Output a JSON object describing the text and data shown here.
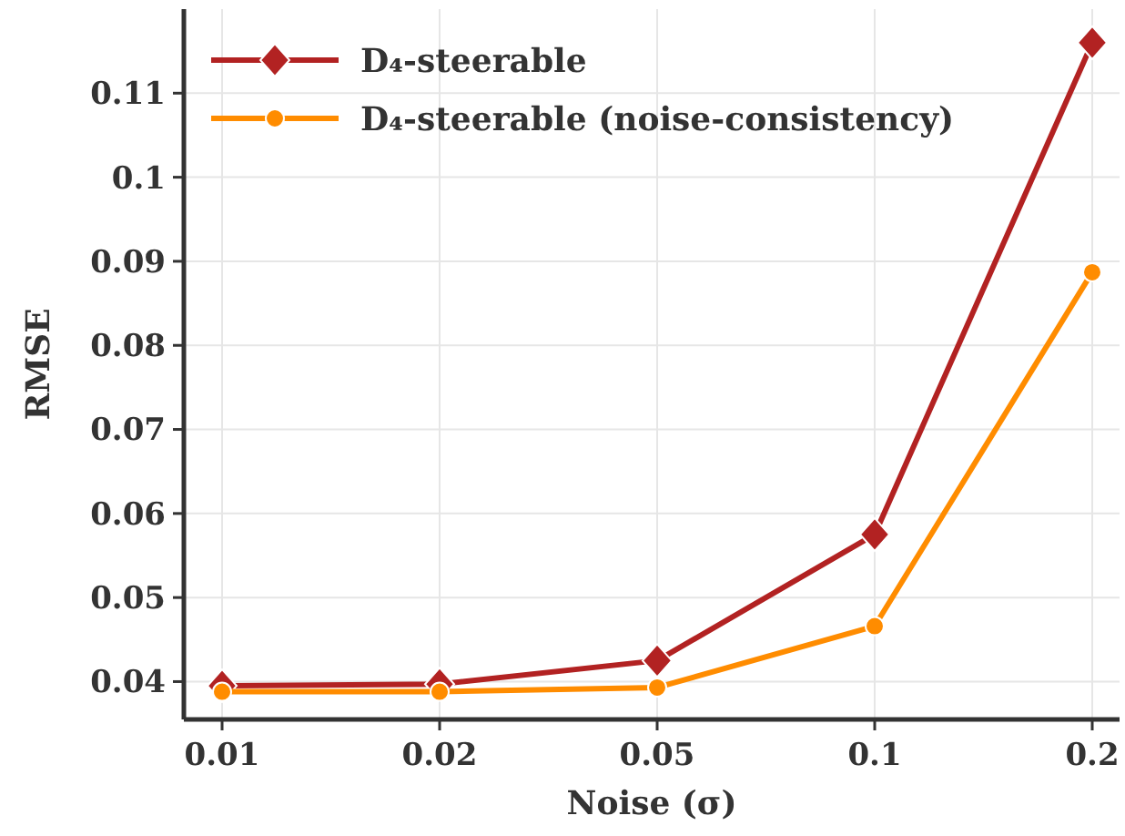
{
  "chart_data": {
    "type": "line",
    "xlabel": "Noise (σ)",
    "ylabel": "RMSE",
    "categories": [
      "0.01",
      "0.02",
      "0.05",
      "0.1",
      "0.2"
    ],
    "series": [
      {
        "name": "D₄-steerable",
        "color": "#b22222",
        "marker": "diamond",
        "values": [
          0.0395,
          0.0397,
          0.0425,
          0.0575,
          0.116
        ]
      },
      {
        "name": "D₄-steerable (noise-consistency)",
        "color": "#ff8c00",
        "marker": "circle",
        "values": [
          0.0388,
          0.0388,
          0.0393,
          0.0466,
          0.0887
        ]
      }
    ],
    "ylim": [
      0.0355,
      0.12
    ],
    "yticks": [
      0.04,
      0.05,
      0.06,
      0.07,
      0.08,
      0.09,
      0.1,
      0.11
    ],
    "grid": true,
    "legend": "top left",
    "line_style": "solid"
  }
}
